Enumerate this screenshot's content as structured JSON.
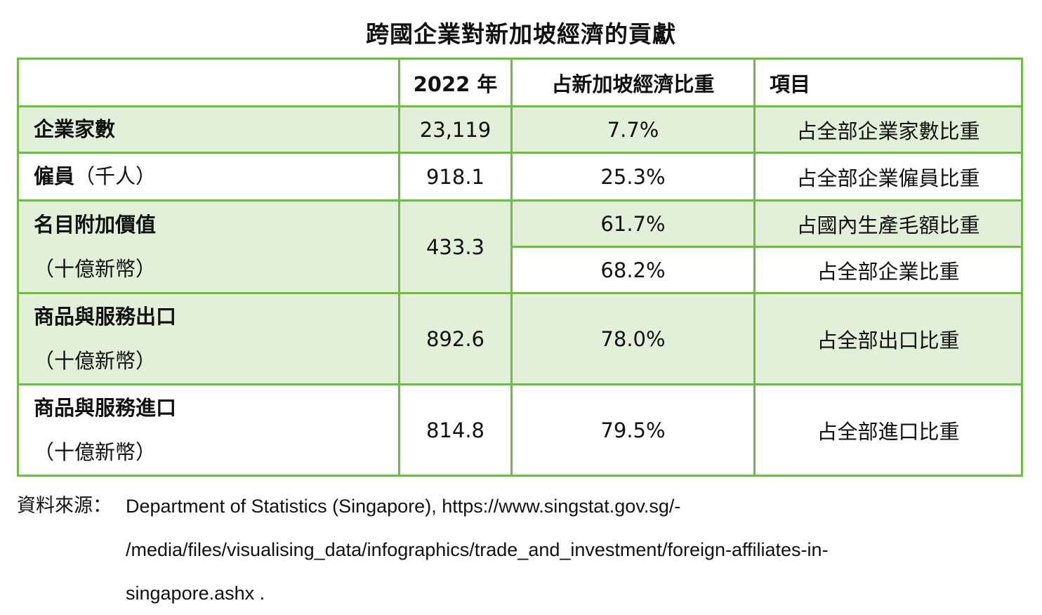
{
  "title": "跨國企業對新加坡經濟的貢獻",
  "table": {
    "headers": [
      "",
      "2022 年",
      "占新加坡經濟比重",
      "項目"
    ],
    "rows": {
      "firms": {
        "name": "企業家數",
        "value": "23,119",
        "share": "7.7%",
        "item": "占全部企業家數比重"
      },
      "employees": {
        "name": "僱員",
        "unit": "（千人）",
        "value": "918.1",
        "share": "25.3%",
        "item": "占全部企業僱員比重"
      },
      "value_added": {
        "name": "名目附加價值",
        "unit": "（十億新幣）",
        "value": "433.3",
        "share_1": "61.7%",
        "item_1": "占國內生產毛額比重",
        "share_2": "68.2%",
        "item_2": "占全部企業比重"
      },
      "exports": {
        "name": "商品與服務出口",
        "unit": "（十億新幣）",
        "value": "892.6",
        "share": "78.0%",
        "item": "占全部出口比重"
      },
      "imports": {
        "name": "商品與服務進口",
        "unit": "（十億新幣）",
        "value": "814.8",
        "share": "79.5%",
        "item": "占全部進口比重"
      }
    },
    "border_color": "#72b84c",
    "shade_color": "#e3f0d9"
  },
  "source": {
    "label": "資料來源：",
    "line1": "Department of Statistics (Singapore), https://www.singstat.gov.sg/-",
    "line2": "/media/files/visualising_data/infographics/trade_and_investment/foreign-affiliates-in-",
    "line3": "singapore.ashx ."
  }
}
